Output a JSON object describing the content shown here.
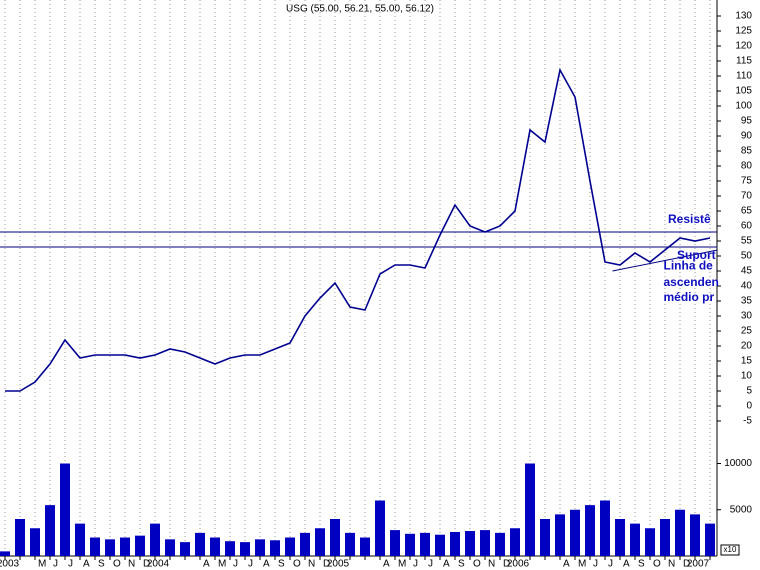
{
  "chart_data": {
    "type": "line",
    "title": "USG (55.00, 56.21, 55.00, 56.12)",
    "categories": [
      "2003",
      null,
      "M",
      "J",
      "J",
      "A",
      "S",
      "O",
      "N",
      "D",
      "2004",
      null,
      null,
      "A",
      "M",
      "J",
      "J",
      "A",
      "S",
      "O",
      "N",
      "D",
      "2005",
      null,
      null,
      "A",
      "M",
      "J",
      "J",
      "A",
      "S",
      "O",
      "N",
      "D",
      "2006",
      null,
      null,
      "A",
      "M",
      "J",
      "J",
      "A",
      "S",
      "O",
      "N",
      "D",
      "2007",
      null
    ],
    "series": [
      {
        "name": "USG",
        "color": "#000090",
        "values": [
          5,
          5,
          8,
          14,
          22,
          16,
          17,
          17,
          17,
          16,
          17,
          19,
          18,
          16,
          14,
          16,
          17,
          17,
          19,
          21,
          30,
          36,
          41,
          33,
          32,
          44,
          47,
          47,
          46,
          57,
          67,
          60,
          58,
          60,
          65,
          92,
          88,
          112,
          103,
          75,
          48,
          47,
          51,
          48,
          52,
          56,
          55,
          56
        ]
      }
    ],
    "ylim": [
      -7,
      132
    ],
    "yticks": [
      -5,
      0,
      5,
      10,
      15,
      20,
      25,
      30,
      35,
      40,
      45,
      50,
      55,
      60,
      65,
      70,
      75,
      80,
      85,
      90,
      95,
      100,
      105,
      110,
      115,
      120,
      125,
      130
    ],
    "grid": true,
    "hlines": [
      58,
      53
    ],
    "hline_color": "#000080",
    "trendline": {
      "x": [
        40.5,
        47.5
      ],
      "y": [
        45,
        52
      ]
    },
    "annotations": [
      {
        "text": "Resistê",
        "x": 44.2,
        "y": 62
      },
      {
        "text": "Suport",
        "x": 44.8,
        "y": 50
      },
      {
        "text": "Linha de",
        "x": 43.9,
        "y": 46.5
      },
      {
        "text": "ascenden",
        "x": 43.9,
        "y": 41
      },
      {
        "text": "médio pr",
        "x": 43.9,
        "y": 36
      }
    ],
    "volume": {
      "color": "#0000c0",
      "values": [
        500,
        4000,
        3000,
        5500,
        10000,
        3500,
        2000,
        1800,
        2000,
        2200,
        3500,
        1800,
        1500,
        2500,
        2000,
        1600,
        1500,
        1800,
        1700,
        2000,
        2500,
        3000,
        4000,
        2500,
        2000,
        6000,
        2800,
        2400,
        2500,
        2300,
        2600,
        2700,
        2800,
        2500,
        3000,
        10000,
        4000,
        4500,
        5000,
        5500,
        6000,
        4000,
        3500,
        3000,
        4000,
        5000,
        4500,
        3500
      ],
      "ylim": [
        0,
        12000
      ],
      "yticks": [
        5000,
        10000
      ],
      "unit_label": "x10"
    }
  }
}
